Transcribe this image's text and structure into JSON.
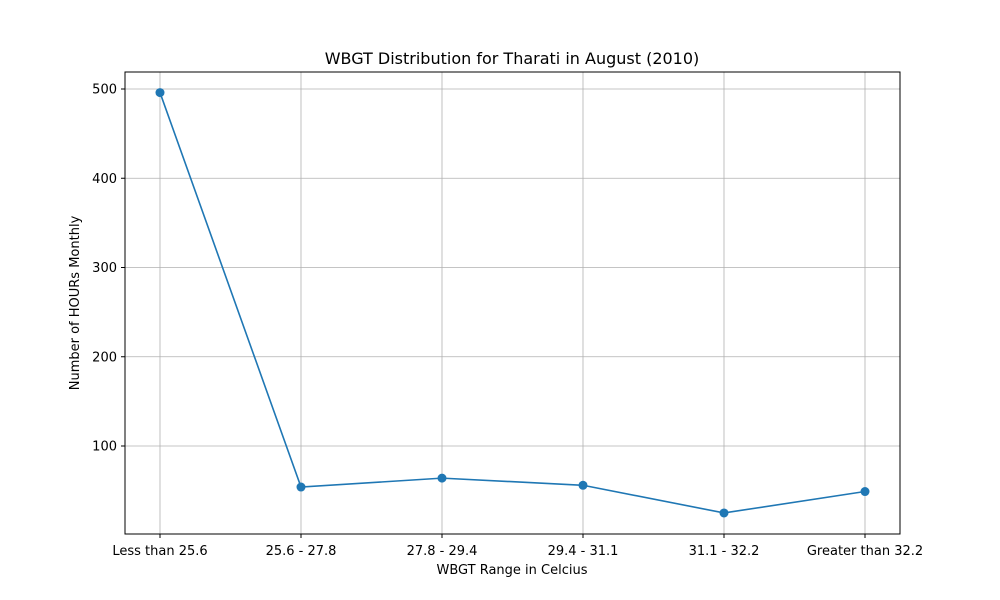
{
  "chart_data": {
    "type": "line",
    "title": "WBGT Distribution for Tharati in August (2010)",
    "xlabel": "WBGT Range in Celcius",
    "ylabel": "Number of HOURs Monthly",
    "categories": [
      "Less than 25.6",
      "25.6 - 27.8",
      "27.8 - 29.4",
      "29.4 - 31.1",
      "31.1 - 32.2",
      "Greater than 32.2"
    ],
    "series": [
      {
        "values": [
          496,
          54,
          64,
          56,
          25,
          49
        ],
        "color": "#1f77b4"
      }
    ],
    "ylim": [
      0,
      520
    ],
    "yticks": [
      100,
      200,
      300,
      400,
      500
    ],
    "grid": true,
    "marker": "circle"
  }
}
